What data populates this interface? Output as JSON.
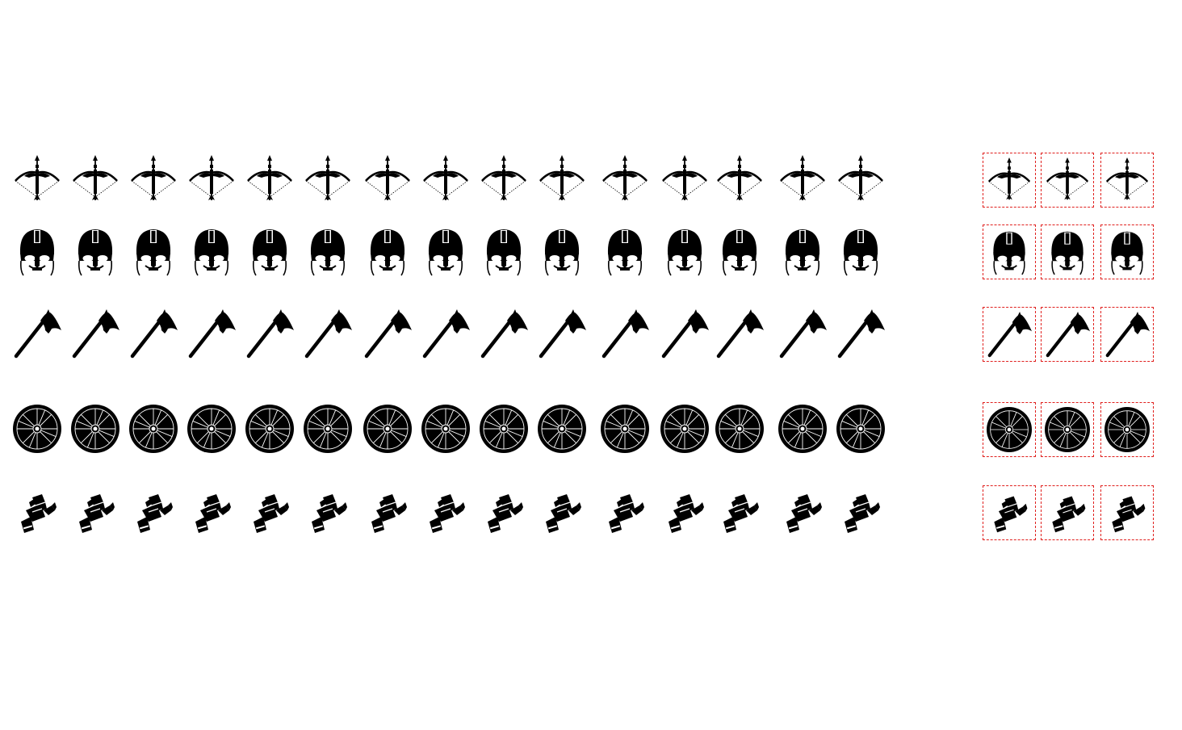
{
  "canvas": {
    "background": "#ffffff"
  },
  "accent_color": "#e0201e",
  "icon_color": "#000000",
  "rows": [
    {
      "icon": "crossbow-icon",
      "plain_count": 15,
      "boxed_count": 3
    },
    {
      "icon": "viking-helmet-icon",
      "plain_count": 15,
      "boxed_count": 3
    },
    {
      "icon": "battle-axe-icon",
      "plain_count": 15,
      "boxed_count": 3
    },
    {
      "icon": "round-shield-icon",
      "plain_count": 15,
      "boxed_count": 3
    },
    {
      "icon": "gauntlet-icon",
      "plain_count": 15,
      "boxed_count": 3
    }
  ]
}
